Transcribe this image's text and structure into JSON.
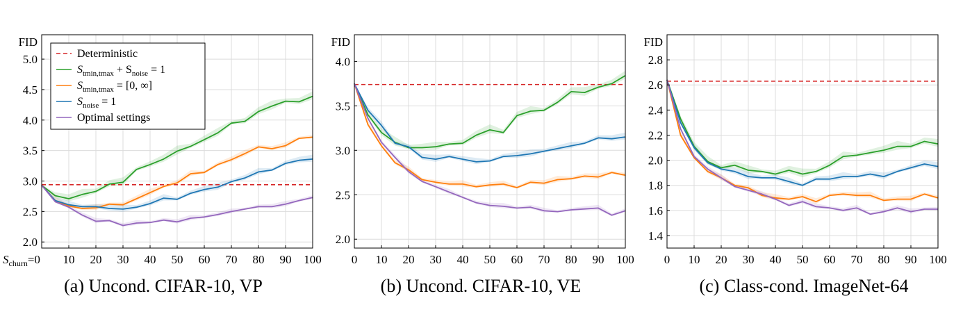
{
  "chart_data": [
    {
      "type": "line",
      "caption": "(a) Uncond. CIFAR-10, VP",
      "ylabel": "FID",
      "xlabel_prefix": "S",
      "xlabel_sub": "churn",
      "xlabel_suffix": "=0",
      "x": [
        0,
        5,
        10,
        15,
        20,
        25,
        30,
        35,
        40,
        45,
        50,
        55,
        60,
        65,
        70,
        75,
        80,
        85,
        90,
        95,
        100
      ],
      "xlim": [
        0,
        100
      ],
      "ylim": [
        1.9,
        5.4
      ],
      "xticks": [
        0,
        10,
        20,
        30,
        40,
        50,
        60,
        70,
        80,
        90,
        100
      ],
      "yticks": [
        2.0,
        2.5,
        3.0,
        3.5,
        4.0,
        4.5,
        5.0
      ],
      "ytick_labels": [
        "2.0",
        "2.5",
        "3.0",
        "3.5",
        "4.0",
        "4.5",
        "5.0"
      ],
      "deterministic": 2.94,
      "legend": true,
      "series": [
        {
          "key": "tmin_noise",
          "color": "#2ca02c",
          "values": [
            2.93,
            2.76,
            2.71,
            2.78,
            2.83,
            2.95,
            2.98,
            3.19,
            3.27,
            3.36,
            3.49,
            3.57,
            3.68,
            3.79,
            3.95,
            3.98,
            4.14,
            4.23,
            4.31,
            4.3,
            4.39
          ]
        },
        {
          "key": "tmin_inf",
          "color": "#ff7f0e",
          "values": [
            2.93,
            2.68,
            2.59,
            2.55,
            2.56,
            2.62,
            2.61,
            2.71,
            2.81,
            2.91,
            2.97,
            3.12,
            3.14,
            3.27,
            3.35,
            3.45,
            3.56,
            3.53,
            3.58,
            3.7,
            3.72
          ]
        },
        {
          "key": "snoise",
          "color": "#1f77b4",
          "values": [
            2.93,
            2.68,
            2.61,
            2.58,
            2.58,
            2.55,
            2.54,
            2.57,
            2.63,
            2.72,
            2.7,
            2.8,
            2.86,
            2.9,
            2.99,
            3.05,
            3.15,
            3.18,
            3.29,
            3.34,
            3.36
          ]
        },
        {
          "key": "optimal",
          "color": "#9467bd",
          "values": [
            2.93,
            2.66,
            2.57,
            2.44,
            2.34,
            2.35,
            2.27,
            2.31,
            2.32,
            2.36,
            2.33,
            2.39,
            2.41,
            2.45,
            2.5,
            2.54,
            2.58,
            2.58,
            2.62,
            2.68,
            2.73
          ]
        }
      ]
    },
    {
      "type": "line",
      "caption": "(b) Uncond. CIFAR-10, VE",
      "ylabel": "FID",
      "x": [
        0,
        5,
        10,
        15,
        20,
        25,
        30,
        35,
        40,
        45,
        50,
        55,
        60,
        65,
        70,
        75,
        80,
        85,
        90,
        95,
        100
      ],
      "xlim": [
        0,
        100
      ],
      "ylim": [
        1.9,
        4.3
      ],
      "xticks": [
        0,
        10,
        20,
        30,
        40,
        50,
        60,
        70,
        80,
        90,
        100
      ],
      "yticks": [
        2.0,
        2.5,
        3.0,
        3.5,
        4.0
      ],
      "ytick_labels": [
        "2.0",
        "2.5",
        "3.0",
        "3.5",
        "4.0"
      ],
      "deterministic": 3.74,
      "legend": false,
      "series": [
        {
          "key": "tmin_noise",
          "color": "#2ca02c",
          "values": [
            3.75,
            3.4,
            3.2,
            3.09,
            3.03,
            3.03,
            3.04,
            3.07,
            3.08,
            3.17,
            3.23,
            3.2,
            3.39,
            3.44,
            3.45,
            3.54,
            3.66,
            3.65,
            3.71,
            3.75,
            3.84
          ]
        },
        {
          "key": "tmin_inf",
          "color": "#ff7f0e",
          "values": [
            3.75,
            3.29,
            3.05,
            2.86,
            2.78,
            2.67,
            2.64,
            2.62,
            2.62,
            2.59,
            2.61,
            2.62,
            2.58,
            2.64,
            2.63,
            2.67,
            2.68,
            2.71,
            2.7,
            2.75,
            2.72
          ]
        },
        {
          "key": "snoise",
          "color": "#1f77b4",
          "values": [
            3.75,
            3.45,
            3.28,
            3.08,
            3.04,
            2.92,
            2.9,
            2.93,
            2.9,
            2.87,
            2.88,
            2.93,
            2.94,
            2.96,
            2.99,
            3.02,
            3.05,
            3.08,
            3.14,
            3.13,
            3.15
          ]
        },
        {
          "key": "optimal",
          "color": "#9467bd",
          "values": [
            3.75,
            3.36,
            3.09,
            2.92,
            2.76,
            2.65,
            2.59,
            2.53,
            2.47,
            2.41,
            2.38,
            2.37,
            2.35,
            2.36,
            2.32,
            2.31,
            2.33,
            2.34,
            2.35,
            2.27,
            2.32
          ]
        }
      ]
    },
    {
      "type": "line",
      "caption": "(c) Class-cond. ImageNet-64",
      "ylabel": "FID",
      "x": [
        0,
        5,
        10,
        15,
        20,
        25,
        30,
        35,
        40,
        45,
        50,
        55,
        60,
        65,
        70,
        75,
        80,
        85,
        90,
        95,
        100
      ],
      "xlim": [
        0,
        100
      ],
      "ylim": [
        1.3,
        3.0
      ],
      "xticks": [
        0,
        10,
        20,
        30,
        40,
        50,
        60,
        70,
        80,
        90,
        100
      ],
      "yticks": [
        1.4,
        1.6,
        1.8,
        2.0,
        2.2,
        2.4,
        2.6,
        2.8
      ],
      "ytick_labels": [
        "1.4",
        "1.6",
        "1.8",
        "2.0",
        "2.2",
        "2.4",
        "2.6",
        "2.8"
      ],
      "deterministic": 2.63,
      "legend": false,
      "series": [
        {
          "key": "tmin_noise",
          "color": "#2ca02c",
          "values": [
            2.64,
            2.33,
            2.11,
            1.99,
            1.94,
            1.96,
            1.92,
            1.91,
            1.89,
            1.92,
            1.89,
            1.91,
            1.96,
            2.03,
            2.04,
            2.06,
            2.08,
            2.11,
            2.11,
            2.15,
            2.13
          ]
        },
        {
          "key": "tmin_inf",
          "color": "#ff7f0e",
          "values": [
            2.64,
            2.2,
            2.02,
            1.91,
            1.86,
            1.8,
            1.78,
            1.72,
            1.7,
            1.69,
            1.71,
            1.67,
            1.72,
            1.73,
            1.72,
            1.72,
            1.68,
            1.69,
            1.69,
            1.73,
            1.7
          ]
        },
        {
          "key": "snoise",
          "color": "#1f77b4",
          "values": [
            2.64,
            2.3,
            2.1,
            1.98,
            1.93,
            1.91,
            1.87,
            1.86,
            1.86,
            1.83,
            1.8,
            1.85,
            1.85,
            1.87,
            1.87,
            1.89,
            1.87,
            1.91,
            1.94,
            1.97,
            1.95
          ]
        },
        {
          "key": "optimal",
          "color": "#9467bd",
          "values": [
            2.64,
            2.25,
            2.03,
            1.93,
            1.86,
            1.79,
            1.76,
            1.73,
            1.69,
            1.64,
            1.67,
            1.63,
            1.62,
            1.6,
            1.62,
            1.57,
            1.59,
            1.62,
            1.59,
            1.61,
            1.61
          ]
        }
      ]
    }
  ],
  "legend_entries": [
    {
      "key": "deterministic",
      "color": "#d62728",
      "dashed": true,
      "text": "Deterministic"
    },
    {
      "key": "tmin_noise",
      "color": "#2ca02c",
      "dashed": false,
      "main": "S",
      "sub": "tmin,tmax",
      "rest": " + S",
      "sub2": "noise",
      "rest2": " = 1"
    },
    {
      "key": "tmin_inf",
      "color": "#ff7f0e",
      "dashed": false,
      "main": "S",
      "sub": "tmin,tmax",
      "rest": " = [0, ∞]"
    },
    {
      "key": "snoise",
      "color": "#1f77b4",
      "dashed": false,
      "main": "S",
      "sub": "noise",
      "rest": " = 1"
    },
    {
      "key": "optimal",
      "color": "#9467bd",
      "dashed": false,
      "text": "Optimal settings"
    }
  ],
  "deterministic_color": "#d62728"
}
